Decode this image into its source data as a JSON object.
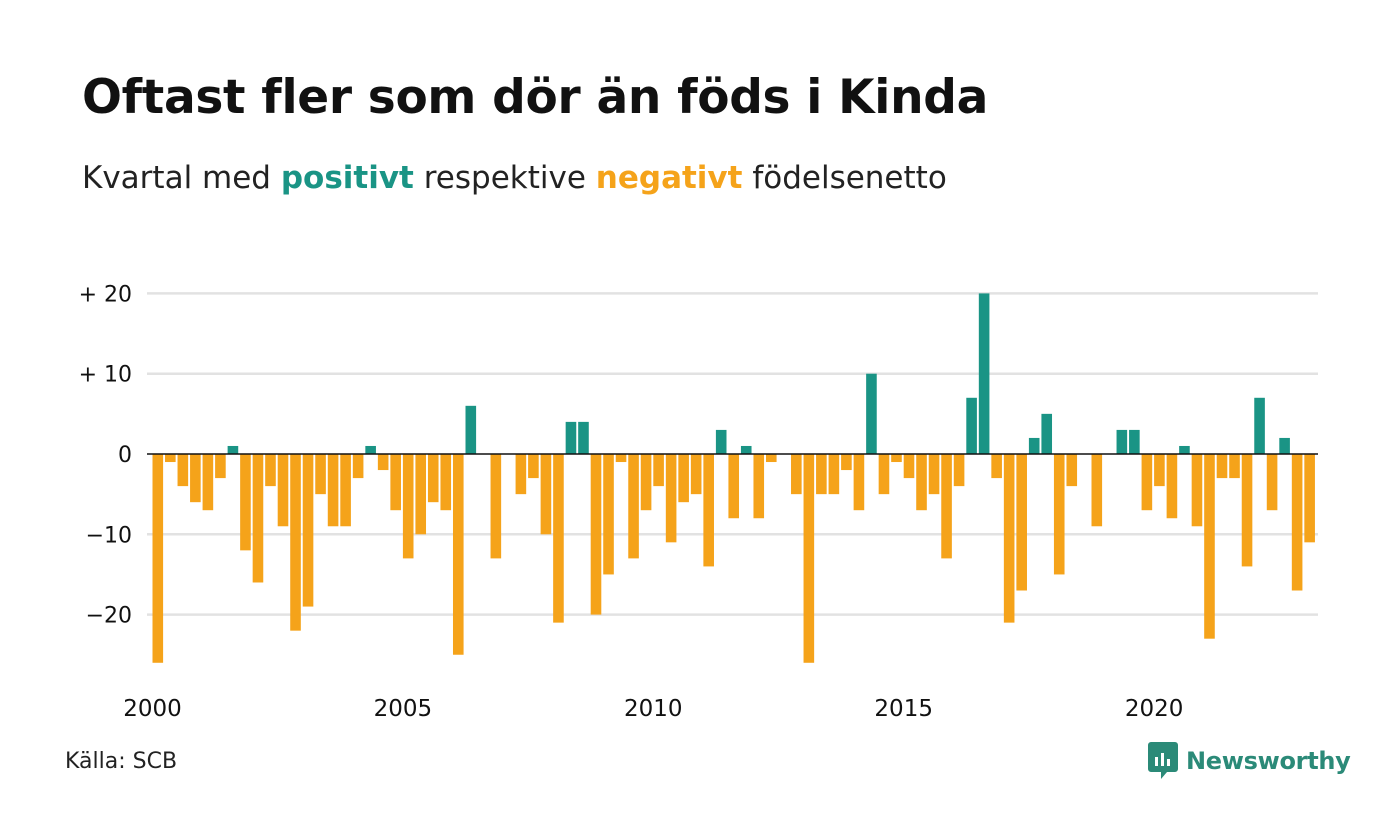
{
  "header": {
    "title": "Oftast fler som dör än föds i Kinda",
    "subtitle_prefix": "Kvartal med ",
    "subtitle_positive": "positivt",
    "subtitle_middle": " respektive ",
    "subtitle_negative": "negativt",
    "subtitle_suffix": " födelsenetto"
  },
  "footer": {
    "source": "Källa: SCB",
    "brand": "Newsworthy",
    "brand_icon": "newsworthy-logo-icon"
  },
  "colors": {
    "positive": "#1a9485",
    "negative": "#f5a31a",
    "grid": "#e2e2e2",
    "zero_line": "#111111",
    "brand": "#2b8a78"
  },
  "chart_data": {
    "type": "bar",
    "title": "Oftast fler som dör än föds i Kinda",
    "subtitle": "Kvartal med positivt respektive negativt födelsenetto",
    "x_start": "2000-Q1",
    "x_ticks": [
      {
        "label": "2000",
        "index": 0
      },
      {
        "label": "2005",
        "index": 20
      },
      {
        "label": "2010",
        "index": 40
      },
      {
        "label": "2015",
        "index": 60
      },
      {
        "label": "2020",
        "index": 80
      }
    ],
    "y_ticks": [
      {
        "label": "+ 20",
        "value": 20
      },
      {
        "label": "+ 10",
        "value": 10
      },
      {
        "label": "0",
        "value": 0
      },
      {
        "label": "−10",
        "value": -10
      },
      {
        "label": "−20",
        "value": -20
      }
    ],
    "ylim": [
      -27,
      21
    ],
    "grid": true,
    "values": [
      -26,
      -1,
      -4,
      -6,
      -7,
      -3,
      1,
      -12,
      -16,
      -4,
      -9,
      -22,
      -19,
      -5,
      -9,
      -9,
      -3,
      1,
      -2,
      -7,
      -13,
      -10,
      -6,
      -7,
      -25,
      6,
      0,
      -13,
      0,
      -5,
      -3,
      -10,
      -21,
      4,
      4,
      -20,
      -15,
      -1,
      -13,
      -7,
      -4,
      -11,
      -6,
      -5,
      -14,
      3,
      -8,
      1,
      -8,
      -1,
      0,
      -5,
      -26,
      -5,
      -5,
      -2,
      -7,
      10,
      -5,
      -1,
      -3,
      -7,
      -5,
      -13,
      -4,
      7,
      20,
      -3,
      -21,
      -17,
      2,
      5,
      -15,
      -4,
      0,
      -9,
      0,
      3,
      3,
      -7,
      -4,
      -8,
      1,
      -9,
      -23,
      -3,
      -3,
      -14,
      7,
      -7,
      2,
      -17,
      -11
    ]
  }
}
